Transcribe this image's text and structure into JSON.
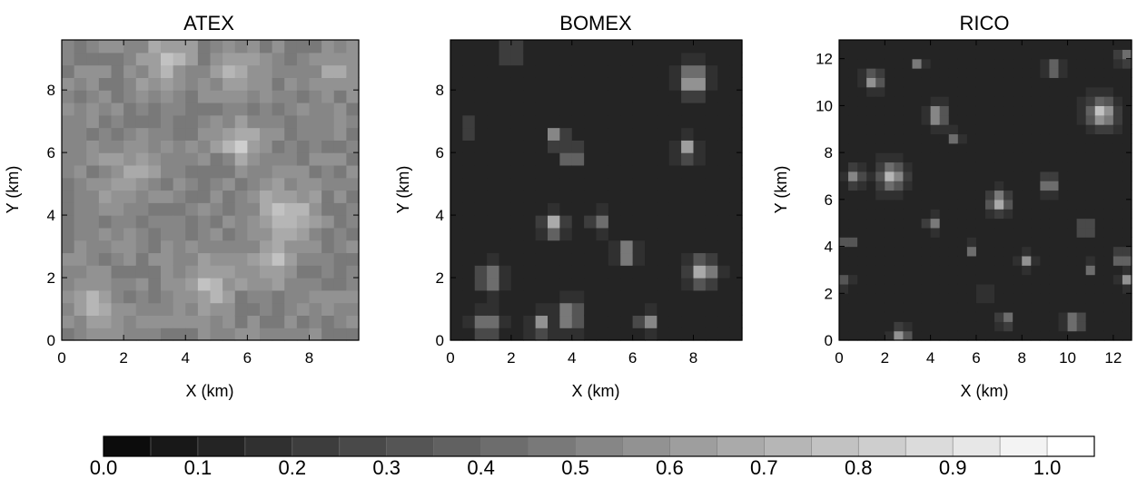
{
  "chart_data": [
    {
      "type": "heatmap",
      "title": "ATEX",
      "xlabel": "X (km)",
      "ylabel": "Y (km)",
      "xlim": [
        0,
        9.6
      ],
      "ylim": [
        0,
        9.6
      ],
      "xticks": [
        0,
        2,
        4,
        6,
        8
      ],
      "yticks": [
        0,
        2,
        4,
        6,
        8
      ],
      "field": {
        "grid": [
          24,
          24
        ],
        "background_value": 0.52,
        "dark_blobs": [
          [
            0.3,
            8.8,
            0.9,
            0.3
          ],
          [
            2.2,
            7.2,
            0.8,
            0.3
          ],
          [
            4.6,
            6.0,
            1.0,
            0.25
          ],
          [
            5.2,
            7.6,
            0.8,
            0.28
          ],
          [
            7.6,
            6.4,
            1.1,
            0.25
          ],
          [
            7.2,
            3.6,
            1.0,
            0.35
          ],
          [
            8.4,
            2.2,
            0.8,
            0.32
          ],
          [
            3.6,
            0.6,
            0.7,
            0.3
          ],
          [
            1.8,
            1.6,
            0.6,
            0.35
          ],
          [
            0.9,
            4.4,
            0.5,
            0.35
          ]
        ],
        "bright_blobs": [
          [
            3.4,
            9.0,
            0.9,
            0.72
          ],
          [
            5.6,
            8.6,
            0.8,
            0.7
          ],
          [
            5.8,
            6.3,
            0.7,
            0.78
          ],
          [
            7.2,
            4.0,
            1.0,
            0.76
          ],
          [
            6.9,
            2.6,
            0.7,
            0.74
          ],
          [
            4.8,
            1.8,
            0.9,
            0.72
          ],
          [
            1.0,
            1.2,
            0.9,
            0.68
          ],
          [
            8.9,
            8.6,
            0.6,
            0.7
          ],
          [
            2.2,
            5.2,
            1.1,
            0.62
          ]
        ]
      }
    },
    {
      "type": "heatmap",
      "title": "BOMEX",
      "xlabel": "X (km)",
      "ylabel": "Y (km)",
      "xlim": [
        0,
        9.6
      ],
      "ylim": [
        0,
        9.6
      ],
      "xticks": [
        0,
        2,
        4,
        6,
        8
      ],
      "yticks": [
        0,
        2,
        4,
        6,
        8
      ],
      "field": {
        "grid": [
          24,
          24
        ],
        "background_value": 0.14,
        "bright_blobs": [
          [
            8.0,
            8.3,
            0.45,
            0.78
          ],
          [
            7.8,
            6.1,
            0.3,
            0.72
          ],
          [
            3.5,
            6.5,
            0.3,
            0.66
          ],
          [
            4.0,
            5.9,
            0.3,
            0.62
          ],
          [
            3.4,
            3.7,
            0.35,
            0.74
          ],
          [
            5.8,
            2.8,
            0.35,
            0.7
          ],
          [
            8.3,
            2.2,
            0.45,
            0.74
          ],
          [
            1.3,
            2.0,
            0.4,
            0.58
          ],
          [
            1.2,
            0.5,
            0.4,
            0.62
          ],
          [
            3.0,
            0.5,
            0.3,
            0.66
          ],
          [
            3.9,
            0.8,
            0.4,
            0.66
          ],
          [
            6.5,
            0.6,
            0.3,
            0.6
          ],
          [
            2.0,
            9.2,
            0.3,
            0.5
          ],
          [
            4.9,
            3.8,
            0.3,
            0.5
          ],
          [
            0.6,
            6.8,
            0.2,
            0.5
          ]
        ]
      }
    },
    {
      "type": "heatmap",
      "title": "RICO",
      "xlabel": "X (km)",
      "ylabel": "Y (km)",
      "xlim": [
        0,
        12.8
      ],
      "ylim": [
        0,
        12.8
      ],
      "xticks": [
        0,
        2,
        4,
        6,
        8,
        10,
        12
      ],
      "yticks": [
        0,
        2,
        4,
        6,
        8,
        10,
        12
      ],
      "field": {
        "grid": [
          32,
          32
        ],
        "background_value": 0.14,
        "bright_blobs": [
          [
            11.5,
            9.7,
            0.6,
            0.8
          ],
          [
            2.3,
            7.0,
            0.55,
            0.76
          ],
          [
            7.0,
            5.9,
            0.45,
            0.72
          ],
          [
            4.3,
            9.6,
            0.4,
            0.72
          ],
          [
            1.5,
            11.1,
            0.35,
            0.66
          ],
          [
            9.2,
            6.7,
            0.35,
            0.62
          ],
          [
            0.7,
            7.0,
            0.35,
            0.58
          ],
          [
            10.8,
            4.8,
            0.3,
            0.6
          ],
          [
            10.3,
            0.8,
            0.35,
            0.64
          ],
          [
            2.7,
            0.2,
            0.35,
            0.6
          ],
          [
            8.2,
            3.4,
            0.3,
            0.58
          ],
          [
            4.1,
            5.0,
            0.3,
            0.56
          ],
          [
            5.1,
            8.7,
            0.25,
            0.56
          ],
          [
            12.4,
            3.5,
            0.3,
            0.6
          ],
          [
            7.3,
            0.9,
            0.3,
            0.56
          ],
          [
            3.5,
            11.8,
            0.25,
            0.56
          ],
          [
            9.4,
            11.6,
            0.3,
            0.62
          ],
          [
            12.6,
            2.6,
            0.25,
            0.56
          ],
          [
            5.8,
            3.9,
            0.25,
            0.52
          ],
          [
            0.4,
            4.2,
            0.25,
            0.54
          ],
          [
            0.3,
            2.5,
            0.2,
            0.5
          ],
          [
            11.0,
            3.1,
            0.25,
            0.52
          ],
          [
            6.4,
            2.0,
            0.25,
            0.5
          ],
          [
            12.5,
            12.1,
            0.3,
            0.56
          ]
        ]
      }
    }
  ],
  "colorbar": {
    "type": "colorbar",
    "vmin": 0.0,
    "vmax": 1.05,
    "levels": 21,
    "tick_labels": [
      "0.0",
      "0.1",
      "0.2",
      "0.3",
      "0.4",
      "0.5",
      "0.6",
      "0.7",
      "0.8",
      "0.9",
      "1.0"
    ]
  }
}
